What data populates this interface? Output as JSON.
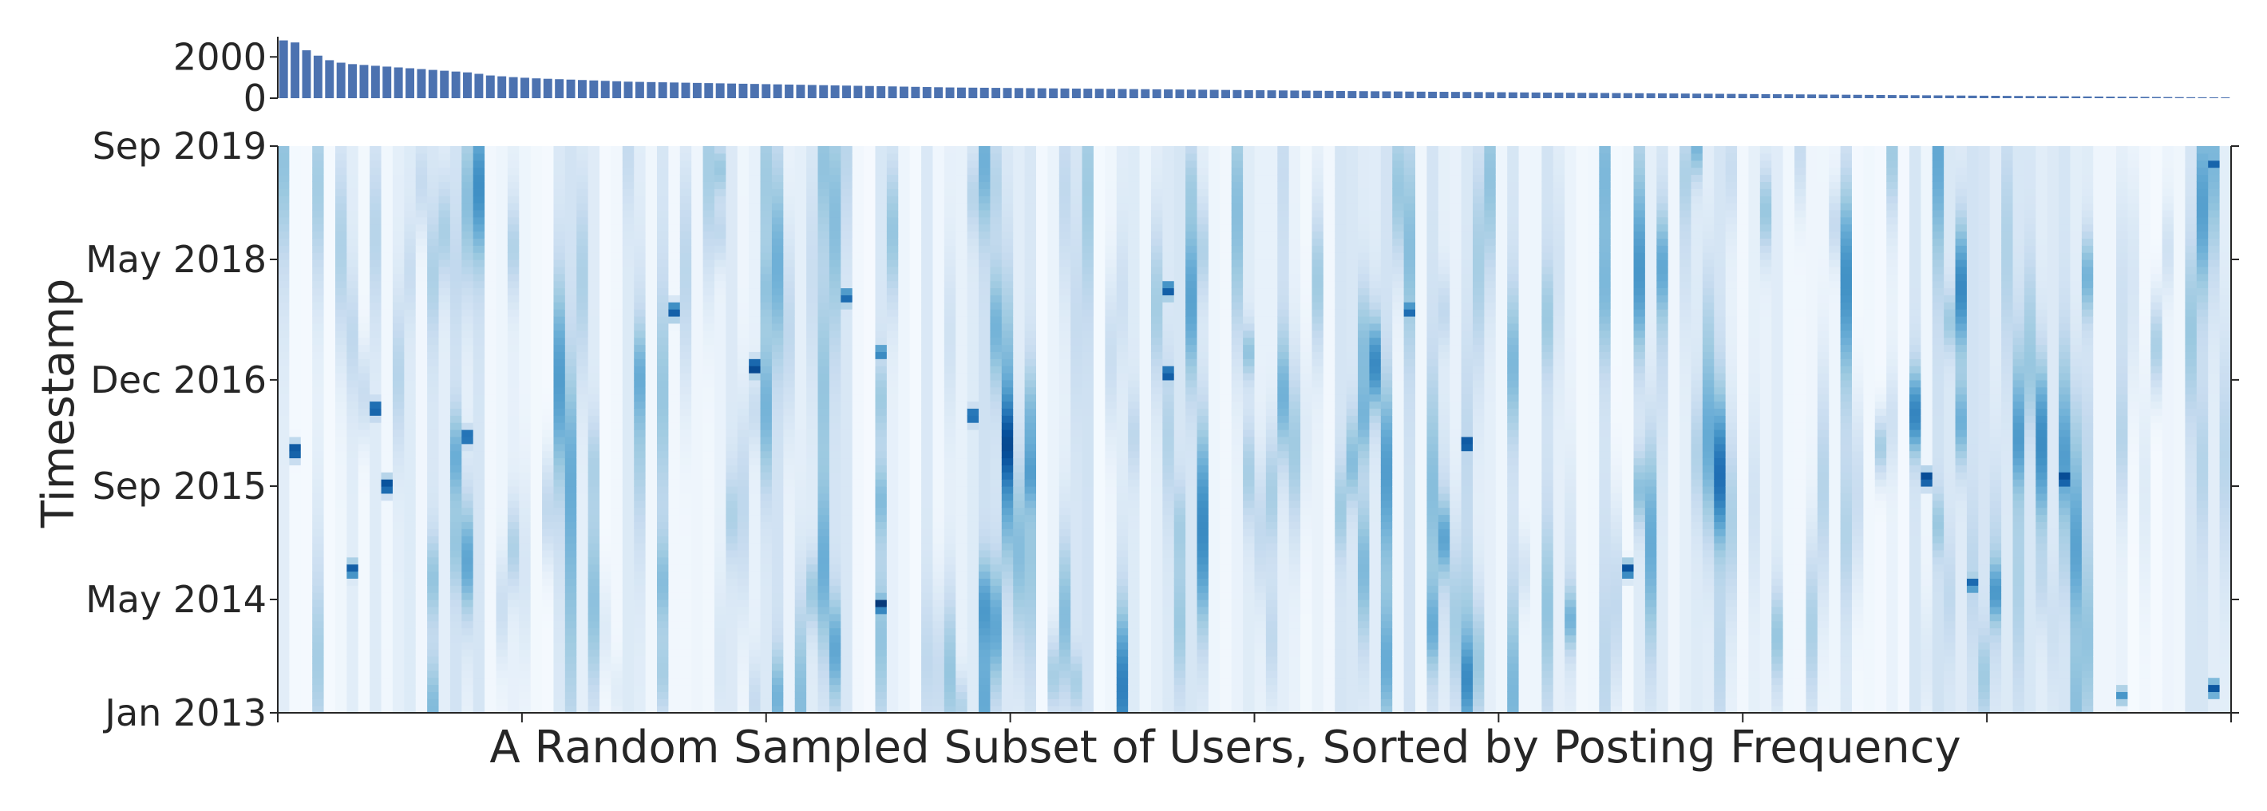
{
  "chart_data": [
    {
      "type": "bar",
      "title": "",
      "xlabel": "",
      "ylabel": "",
      "ylim": [
        0,
        2900
      ],
      "yticks": [
        0,
        2000
      ],
      "ytick_labels": [
        "0",
        "2000"
      ],
      "bar_color": "#4c72b0",
      "values": [
        2800,
        2700,
        2320,
        2060,
        1840,
        1720,
        1650,
        1610,
        1570,
        1530,
        1490,
        1450,
        1410,
        1370,
        1330,
        1290,
        1250,
        1180,
        1100,
        1060,
        1020,
        990,
        960,
        940,
        920,
        900,
        880,
        860,
        840,
        820,
        800,
        790,
        780,
        770,
        760,
        750,
        740,
        730,
        720,
        710,
        700,
        690,
        680,
        670,
        660,
        650,
        640,
        630,
        620,
        610,
        600,
        590,
        580,
        570,
        560,
        550,
        540,
        530,
        520,
        515,
        510,
        505,
        500,
        495,
        490,
        485,
        480,
        475,
        470,
        465,
        460,
        455,
        450,
        445,
        440,
        435,
        430,
        425,
        420,
        415,
        410,
        405,
        400,
        395,
        390,
        385,
        380,
        375,
        370,
        365,
        360,
        355,
        350,
        345,
        340,
        335,
        330,
        325,
        320,
        316,
        312,
        308,
        304,
        300,
        296,
        292,
        288,
        284,
        280,
        276,
        272,
        268,
        264,
        260,
        256,
        252,
        248,
        244,
        240,
        236,
        232,
        228,
        224,
        220,
        216,
        212,
        208,
        204,
        200,
        196,
        192,
        188,
        184,
        180,
        176,
        172,
        168,
        164,
        160,
        156,
        152,
        148,
        144,
        140,
        136,
        132,
        128,
        124,
        120,
        116,
        112,
        108,
        104,
        100,
        96,
        92,
        88,
        84,
        80,
        76,
        72,
        68,
        64,
        60,
        56,
        52,
        48,
        45,
        42,
        40
      ]
    },
    {
      "type": "heatmap",
      "title": "",
      "xlabel": "A Random Sampled Subset of Users, Sorted by Posting Frequency",
      "ylabel": "Timestamp",
      "x_tick_labels": [],
      "x_ticks": [
        0,
        0.125,
        0.25,
        0.375,
        0.5,
        0.625,
        0.75,
        0.875,
        1.0
      ],
      "y_tick_labels": [
        "Jan 2013",
        "May 2014",
        "Sep 2015",
        "Dec 2016",
        "May 2018",
        "Sep 2019"
      ],
      "ylim": [
        "Jan 2013",
        "Sep 2019"
      ],
      "colormap": "Blues",
      "color_low": "#f7fbff",
      "color_high": "#08306b",
      "n_users": 170,
      "n_time_bins": 80,
      "hotspots": [
        {
          "user": 1,
          "time": "Feb 2016",
          "intensity": 0.95
        },
        {
          "user": 8,
          "time": "Aug 2016",
          "intensity": 0.9
        },
        {
          "user": 9,
          "time": "Sep 2015",
          "intensity": 0.95
        },
        {
          "user": 6,
          "time": "Sep 2014",
          "intensity": 0.85
        },
        {
          "user": 16,
          "time": "Apr 2016",
          "intensity": 0.85
        },
        {
          "user": 34,
          "time": "Oct 2017",
          "intensity": 0.85
        },
        {
          "user": 41,
          "time": "Feb 2017",
          "intensity": 0.98
        },
        {
          "user": 49,
          "time": "Dec 2017",
          "intensity": 0.8
        },
        {
          "user": 52,
          "time": "Apr 2017",
          "intensity": 0.7
        },
        {
          "user": 52,
          "time": "Apr 2014",
          "intensity": 0.98
        },
        {
          "user": 60,
          "time": "Jul 2016",
          "intensity": 0.85
        },
        {
          "user": 77,
          "time": "Jan 2018",
          "intensity": 0.85
        },
        {
          "user": 77,
          "time": "Jan 2017",
          "intensity": 0.9
        },
        {
          "user": 98,
          "time": "Oct 2017",
          "intensity": 0.8
        },
        {
          "user": 103,
          "time": "Mar 2016",
          "intensity": 0.95
        },
        {
          "user": 117,
          "time": "Sep 2014",
          "intensity": 0.9
        },
        {
          "user": 143,
          "time": "Oct 2015",
          "intensity": 0.98
        },
        {
          "user": 147,
          "time": "Jul 2014",
          "intensity": 0.8
        },
        {
          "user": 155,
          "time": "Oct 2015",
          "intensity": 0.98
        },
        {
          "user": 160,
          "time": "Mar 2013",
          "intensity": 0.6
        },
        {
          "user": 168,
          "time": "Jul 2019",
          "intensity": 0.8
        },
        {
          "user": 168,
          "time": "Apr 2013",
          "intensity": 0.85
        }
      ]
    }
  ]
}
